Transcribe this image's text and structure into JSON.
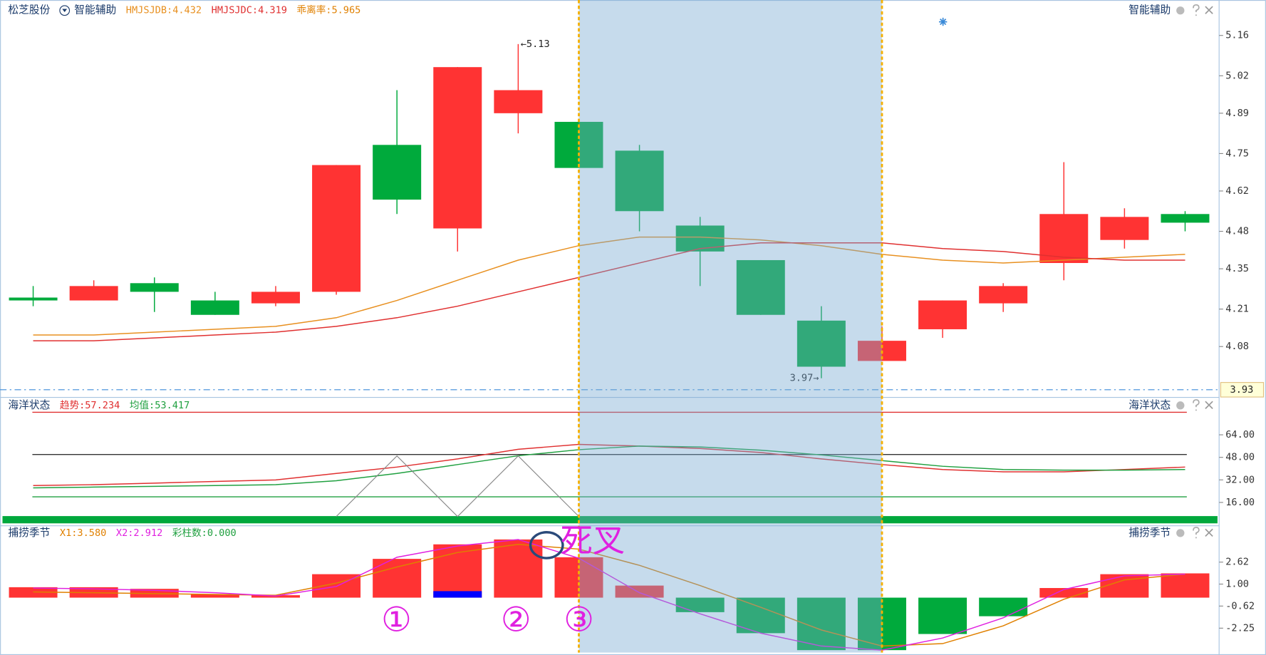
{
  "chart_data": [
    {
      "type": "candlestick",
      "stock": "松芝股份",
      "title": "智能辅助",
      "open": [
        4.25,
        4.24,
        4.3,
        4.24,
        4.23,
        4.27,
        4.78,
        4.49,
        4.89,
        4.86,
        4.76,
        4.5,
        4.38,
        4.17,
        4.03,
        4.14,
        4.23,
        4.37,
        4.45,
        4.54
      ],
      "high": [
        4.29,
        4.31,
        4.32,
        4.27,
        4.29,
        4.71,
        4.97,
        5.05,
        5.13,
        4.86,
        4.78,
        4.53,
        4.38,
        4.22,
        4.15,
        4.24,
        4.3,
        4.72,
        4.56,
        4.55
      ],
      "low": [
        4.22,
        4.24,
        4.2,
        4.19,
        4.22,
        4.26,
        4.54,
        4.41,
        4.82,
        4.7,
        4.48,
        4.29,
        4.19,
        3.97,
        4.03,
        4.11,
        4.2,
        4.31,
        4.42,
        4.48
      ],
      "close": [
        4.24,
        4.29,
        4.27,
        4.19,
        4.27,
        4.71,
        4.59,
        5.05,
        4.97,
        4.7,
        4.55,
        4.41,
        4.19,
        4.01,
        4.1,
        4.24,
        4.29,
        4.54,
        4.53,
        4.51
      ],
      "up_color": "#ff3333",
      "down_color": "#00aa3c",
      "series": [
        {
          "name": "HMJSJDB:4.432",
          "color": "#e89020",
          "values": [
            4.12,
            4.12,
            4.13,
            4.14,
            4.15,
            4.18,
            4.24,
            4.31,
            4.38,
            4.43,
            4.46,
            4.46,
            4.45,
            4.43,
            4.4,
            4.38,
            4.37,
            4.38,
            4.39,
            4.4
          ]
        },
        {
          "name": "HMJSJDC:4.319",
          "color": "#e03030",
          "values": [
            4.1,
            4.1,
            4.11,
            4.12,
            4.13,
            4.15,
            4.18,
            4.22,
            4.27,
            4.32,
            4.37,
            4.42,
            4.44,
            4.44,
            4.44,
            4.42,
            4.41,
            4.39,
            4.38,
            4.38
          ]
        }
      ],
      "extra_labels": [
        {
          "text": "乖离率:5.965",
          "color": "#e08000"
        }
      ],
      "max_label": "←5.13",
      "min_label": "3.97→",
      "last_price": 3.93,
      "highlight": [
        9,
        14
      ],
      "ylim": [
        3.926,
        5.269
      ],
      "yticks": [
        5.16,
        5.02,
        4.89,
        4.75,
        4.62,
        4.48,
        4.35,
        4.21,
        4.08
      ]
    },
    {
      "type": "line",
      "title": "海洋状态",
      "series": [
        {
          "name": "趋势:57.234",
          "color": "#e03030",
          "values": [
            28.0,
            28.6,
            29.7,
            30.9,
            32.0,
            36.6,
            41.1,
            46.9,
            53.7,
            57.2,
            56.0,
            54.3,
            51.4,
            46.9,
            42.9,
            39.4,
            37.7,
            37.7,
            39.4,
            41.1
          ]
        },
        {
          "name": "均值:53.417",
          "color": "#20a040",
          "values": [
            26.3,
            26.9,
            27.4,
            28.0,
            28.6,
            31.4,
            36.6,
            42.9,
            49.1,
            53.4,
            56.0,
            55.4,
            53.1,
            49.7,
            45.7,
            41.7,
            39.4,
            38.9,
            38.9,
            39.4
          ]
        },
        {
          "color": "#888888",
          "values": [
            null,
            null,
            null,
            null,
            null,
            6,
            49,
            6,
            49,
            6,
            null,
            null,
            null,
            null,
            null,
            null,
            null,
            null,
            null,
            null
          ]
        }
      ],
      "reference_lines": [
        {
          "value": 80,
          "color": "#e03030"
        },
        {
          "value": 50,
          "color": "#333333"
        },
        {
          "value": 20,
          "color": "#20a040"
        }
      ],
      "ylim": [
        0,
        90
      ],
      "yticks": [
        {
          "value": 64,
          "label": "64.00"
        },
        {
          "value": 48,
          "label": "48.00"
        },
        {
          "value": 32,
          "label": "32.00"
        },
        {
          "value": 16,
          "label": "16.00"
        }
      ]
    },
    {
      "type": "bar",
      "title": "捕捞季节",
      "values": [
        0.77,
        0.77,
        0.65,
        0.24,
        0.18,
        1.73,
        2.86,
        3.93,
        4.29,
        2.98,
        0.89,
        -1.07,
        -2.62,
        -3.87,
        -3.87,
        -2.68,
        -1.37,
        0.71,
        1.73,
        1.79
      ],
      "up_color": "#ff3333",
      "down_color": "#00aa3c",
      "overlay": {
        "color": "#0000ff",
        "values": [
          null,
          null,
          null,
          null,
          null,
          null,
          null,
          0.48,
          null,
          null,
          null,
          null,
          null,
          null,
          null,
          null,
          null,
          null,
          null,
          null
        ]
      },
      "series": [
        {
          "name": "X1:3.580",
          "color": "#e08000",
          "values": [
            0.42,
            0.36,
            0.3,
            0.24,
            0.18,
            1.07,
            2.26,
            3.33,
            3.93,
            3.58,
            2.38,
            0.89,
            -0.71,
            -2.38,
            -3.57,
            -3.39,
            -2.08,
            -0.12,
            1.31,
            1.73
          ]
        },
        {
          "name": "X2:2.912",
          "color": "#e020e0",
          "values": [
            0.71,
            0.65,
            0.54,
            0.36,
            0.12,
            0.83,
            2.98,
            3.81,
            4.29,
            2.91,
            0.36,
            -1.19,
            -2.62,
            -3.57,
            -3.87,
            -2.98,
            -1.49,
            0.6,
            1.61,
            1.73
          ]
        }
      ],
      "extra_labels": [
        {
          "text": "彩柱数:0.000",
          "color": "#20a040"
        }
      ],
      "annotations": [
        "死叉",
        "①",
        "②",
        "③"
      ],
      "ylim": [
        -4.05,
        5.24
      ],
      "yticks": [
        2.62,
        {
          "value": 1,
          "label": "1.00"
        },
        -0.62,
        -2.25
      ]
    }
  ]
}
